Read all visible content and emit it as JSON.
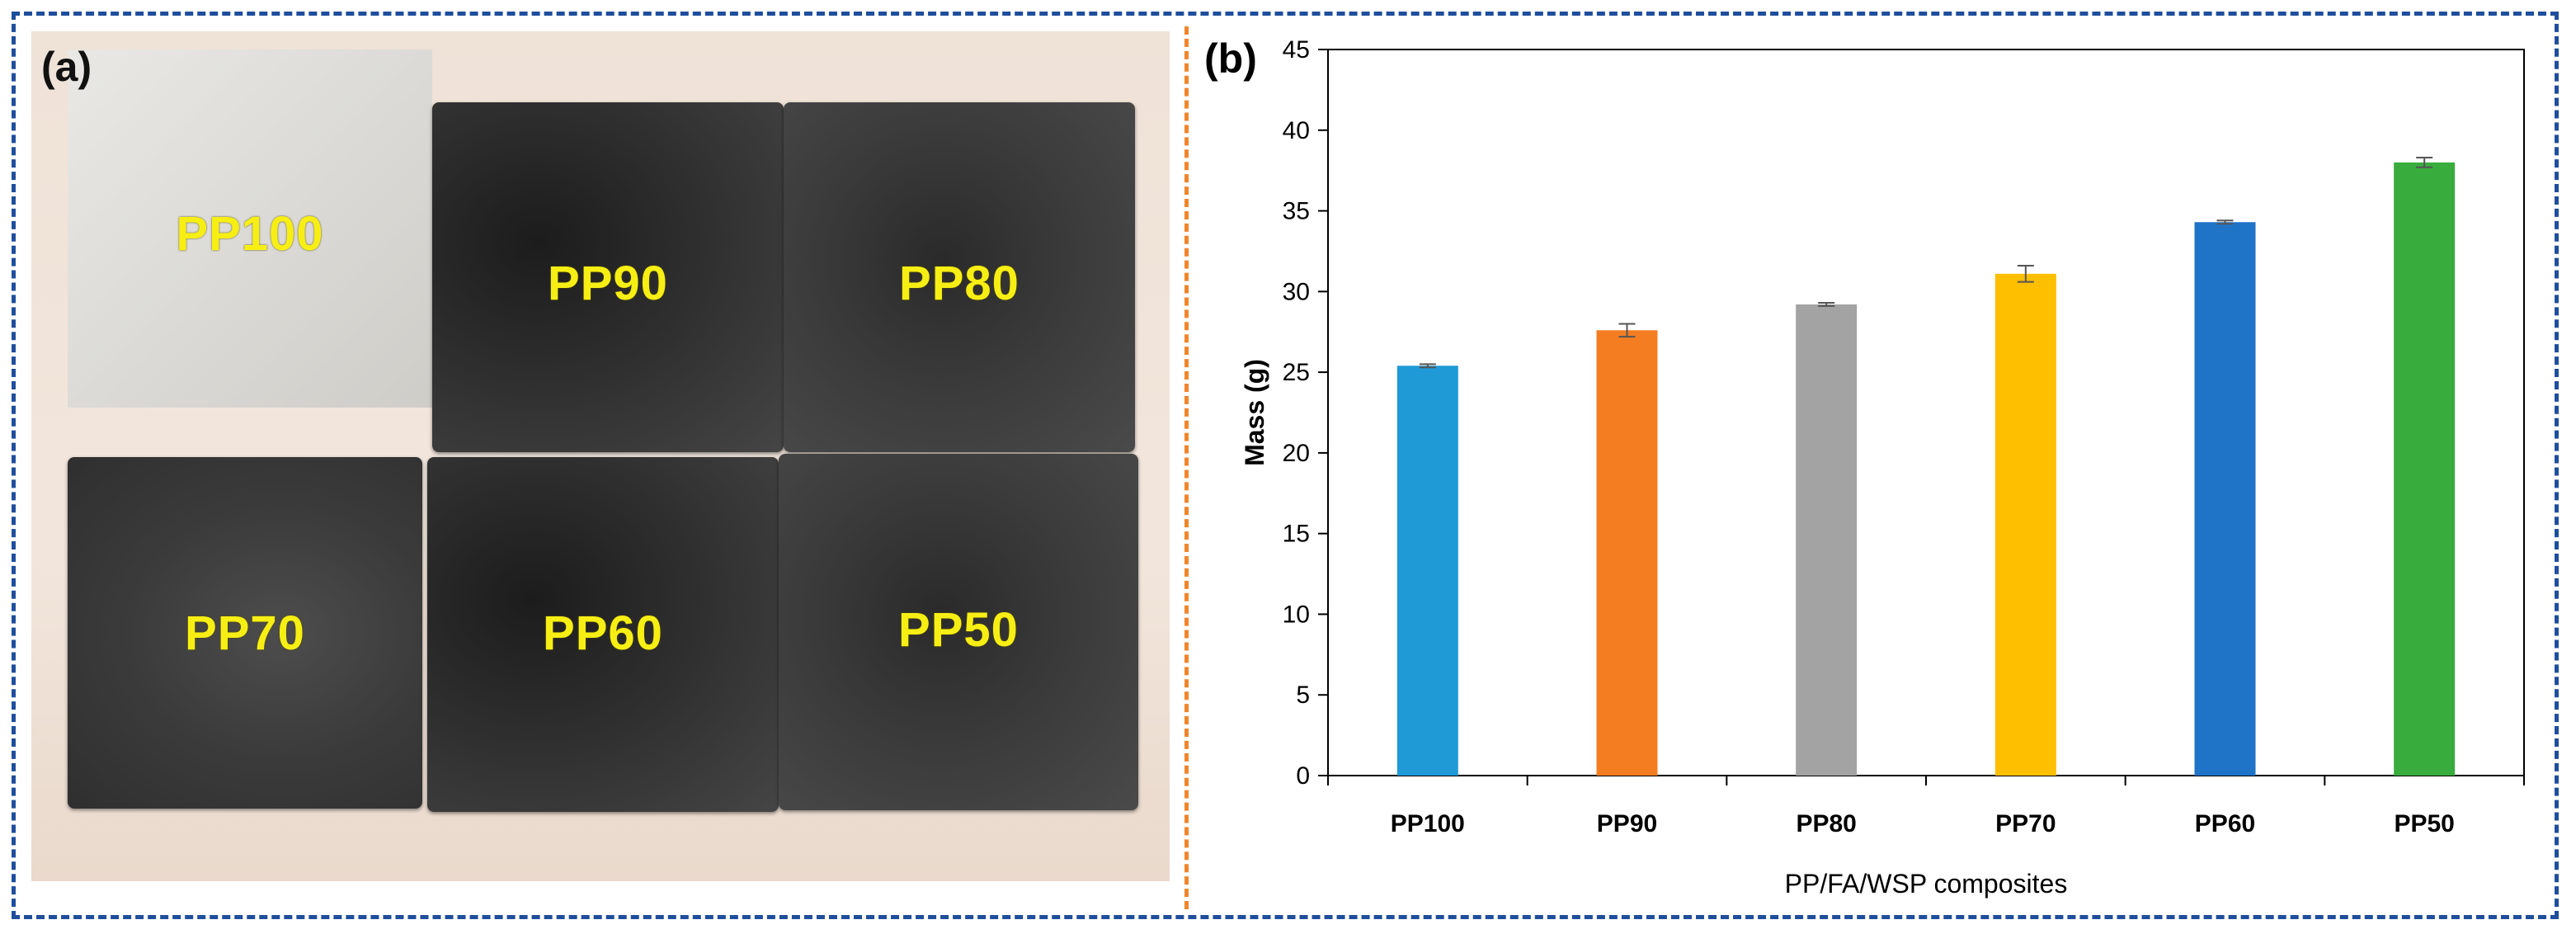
{
  "panels": {
    "a": {
      "letter": "(a)",
      "samples": [
        "PP100",
        "PP90",
        "PP80",
        "PP70",
        "PP60",
        "PP50"
      ]
    },
    "b": {
      "letter": "(b)"
    }
  },
  "colors": {
    "frame": "#1f4e9c",
    "separator": "#f0862c",
    "label": "#f7ef14"
  },
  "chart_data": {
    "type": "bar",
    "title": "",
    "categories": [
      "PP100",
      "PP90",
      "PP80",
      "PP70",
      "PP60",
      "PP50"
    ],
    "values": [
      25.4,
      27.6,
      29.2,
      31.1,
      34.3,
      38.0
    ],
    "errors": [
      0.1,
      0.4,
      0.1,
      0.5,
      0.1,
      0.3
    ],
    "colors": [
      "#1f9ad7",
      "#f47d22",
      "#a3a3a3",
      "#fdbf00",
      "#1f74c8",
      "#38ac3c"
    ],
    "xlabel": "PP/FA/WSP composites",
    "ylabel": "Mass (g)",
    "ylim": [
      0,
      45
    ],
    "yticks": [
      0,
      5,
      10,
      15,
      20,
      25,
      30,
      35,
      40,
      45
    ],
    "grid": false,
    "legend": "none"
  }
}
